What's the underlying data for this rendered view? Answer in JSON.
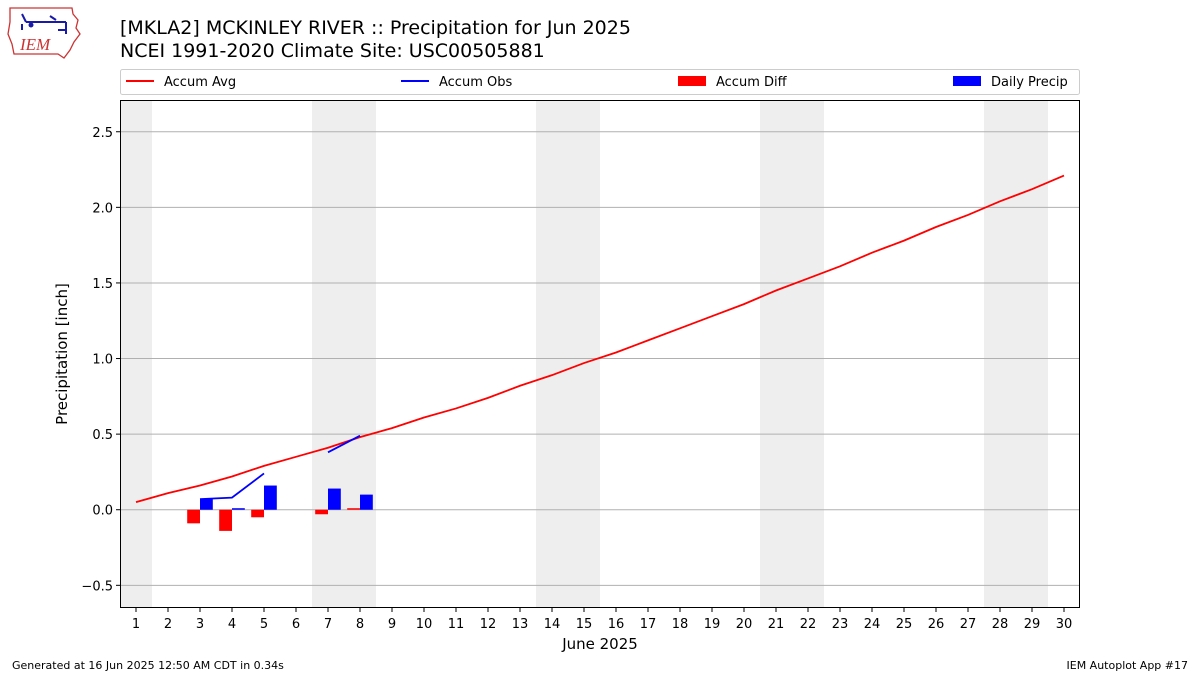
{
  "title": {
    "line1": "[MKLA2] MCKINLEY RIVER :: Precipitation for Jun 2025",
    "line2": "NCEI 1991-2020 Climate Site: USC00505881"
  },
  "logo": {
    "text": "IEM",
    "icon": "iem-iowa-weather-station-logo"
  },
  "footer": {
    "left": "Generated at 16 Jun 2025 12:50 AM CDT in 0.34s",
    "right": "IEM Autoplot App #17"
  },
  "colors": {
    "accum_avg": "#ff0000",
    "accum_obs": "#0000ff",
    "accum_diff": "#ff0000",
    "daily_precip": "#0000ff",
    "weekend_shade": "#eeeeee",
    "grid": "#b0b0b0"
  },
  "chart_data": {
    "type": "bar",
    "xlabel": "June 2025",
    "ylabel": "Precipitation [inch]",
    "xlim": [
      0.5,
      30.5
    ],
    "ylim": [
      -0.65,
      2.71
    ],
    "x_ticks": [
      1,
      2,
      3,
      4,
      5,
      6,
      7,
      8,
      9,
      10,
      11,
      12,
      13,
      14,
      15,
      16,
      17,
      18,
      19,
      20,
      21,
      22,
      23,
      24,
      25,
      26,
      27,
      28,
      29,
      30
    ],
    "y_ticks": [
      -0.5,
      0.0,
      0.5,
      1.0,
      1.5,
      2.0,
      2.5
    ],
    "y_tick_labels": [
      "−0.5",
      "0.0",
      "0.5",
      "1.0",
      "1.5",
      "2.0",
      "2.5"
    ],
    "grid": "horizontal",
    "legend_placement": "top, above plot",
    "weekend_days": [
      1,
      7,
      8,
      14,
      15,
      21,
      22,
      28,
      29
    ],
    "series": [
      {
        "name": "Accum Avg",
        "kind": "line",
        "x": [
          1,
          2,
          3,
          4,
          5,
          6,
          7,
          8,
          9,
          10,
          11,
          12,
          13,
          14,
          15,
          16,
          17,
          18,
          19,
          20,
          21,
          22,
          23,
          24,
          25,
          26,
          27,
          28,
          29,
          30
        ],
        "values": [
          0.05,
          0.11,
          0.16,
          0.22,
          0.29,
          0.35,
          0.41,
          0.48,
          0.54,
          0.61,
          0.67,
          0.74,
          0.82,
          0.89,
          0.97,
          1.04,
          1.12,
          1.2,
          1.28,
          1.36,
          1.45,
          1.53,
          1.61,
          1.7,
          1.78,
          1.87,
          1.95,
          2.04,
          2.12,
          2.21
        ]
      },
      {
        "name": "Accum Obs",
        "kind": "line",
        "segments": [
          {
            "x": [
              3,
              4,
              5
            ],
            "values": [
              0.07,
              0.08,
              0.24
            ]
          },
          {
            "x": [
              7,
              8
            ],
            "values": [
              0.38,
              0.49
            ]
          }
        ]
      },
      {
        "name": "Accum Diff",
        "kind": "bar",
        "x": [
          3,
          4,
          5,
          7,
          8
        ],
        "values": [
          -0.09,
          -0.14,
          -0.05,
          -0.03,
          0.01
        ]
      },
      {
        "name": "Daily Precip",
        "kind": "bar",
        "x": [
          3,
          4,
          5,
          7,
          8
        ],
        "values": [
          0.07,
          0.01,
          0.16,
          0.14,
          0.1
        ]
      }
    ]
  }
}
